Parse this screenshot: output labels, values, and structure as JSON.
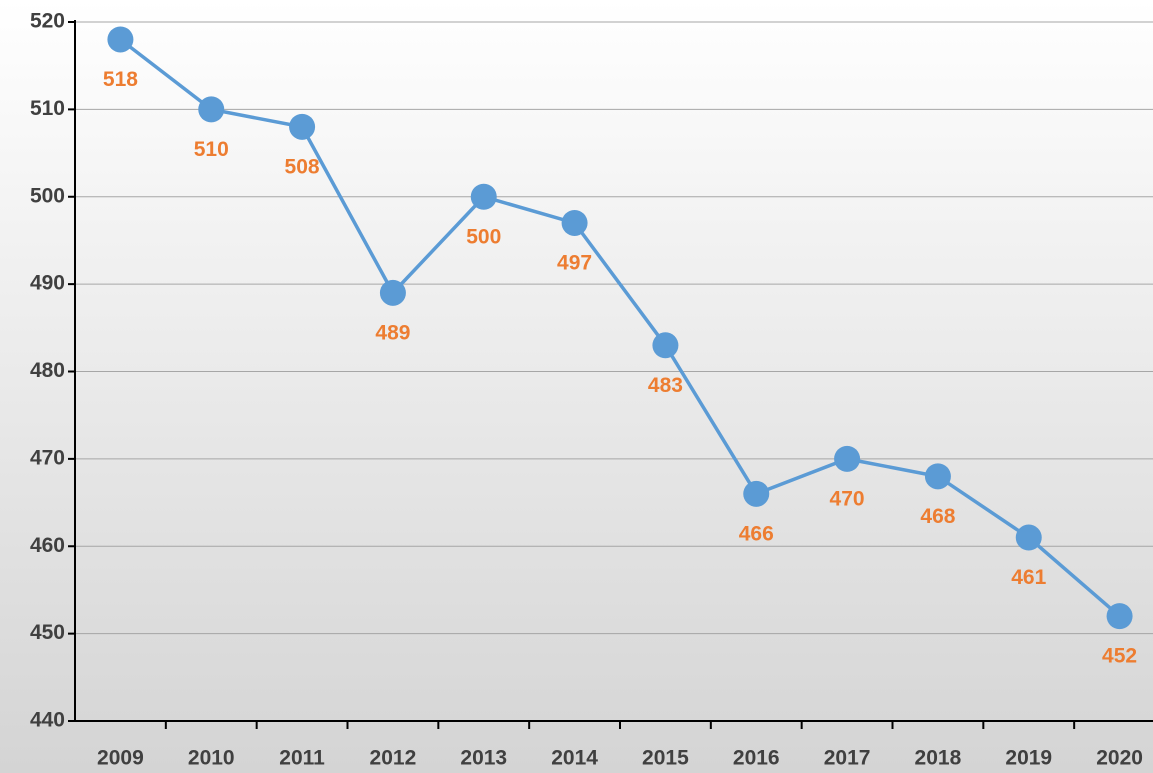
{
  "chart_data": {
    "type": "line",
    "categories": [
      "2009",
      "2010",
      "2011",
      "2012",
      "2013",
      "2014",
      "2015",
      "2016",
      "2017",
      "2018",
      "2019",
      "2020"
    ],
    "series": [
      {
        "name": "Series 1",
        "color": "#5b9bd5",
        "values": [
          518,
          510,
          508,
          489,
          500,
          497,
          483,
          466,
          470,
          468,
          461,
          452
        ]
      }
    ],
    "label_color": "#ed7d31",
    "ylim": [
      440,
      520
    ],
    "yticks": [
      440,
      450,
      460,
      470,
      480,
      490,
      500,
      510,
      520
    ],
    "grid": true
  }
}
